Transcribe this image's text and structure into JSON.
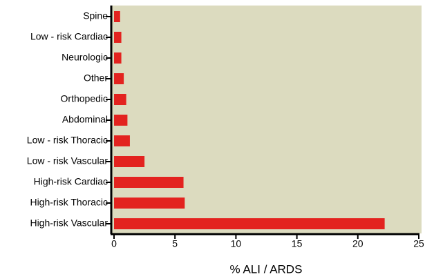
{
  "chart_data": {
    "type": "bar",
    "orientation": "horizontal",
    "categories": [
      "Spine",
      "Low - risk Cardiac",
      "Neurologic",
      "Other",
      "Orthopedic",
      "Abdominal",
      "Low - risk Thoracic",
      "Low - risk Vascular",
      "High-risk Cardiac",
      "High-risk Thoracic",
      "High-risk Vascular"
    ],
    "values": [
      0.5,
      0.6,
      0.6,
      0.8,
      1.0,
      1.1,
      1.3,
      2.5,
      5.7,
      5.8,
      22.2
    ],
    "color": "#e3231f",
    "xlabel": "% ALI / ARDS",
    "xlim": [
      0,
      25
    ],
    "xticks": [
      0,
      5,
      10,
      15,
      20,
      25
    ],
    "grid": false
  }
}
